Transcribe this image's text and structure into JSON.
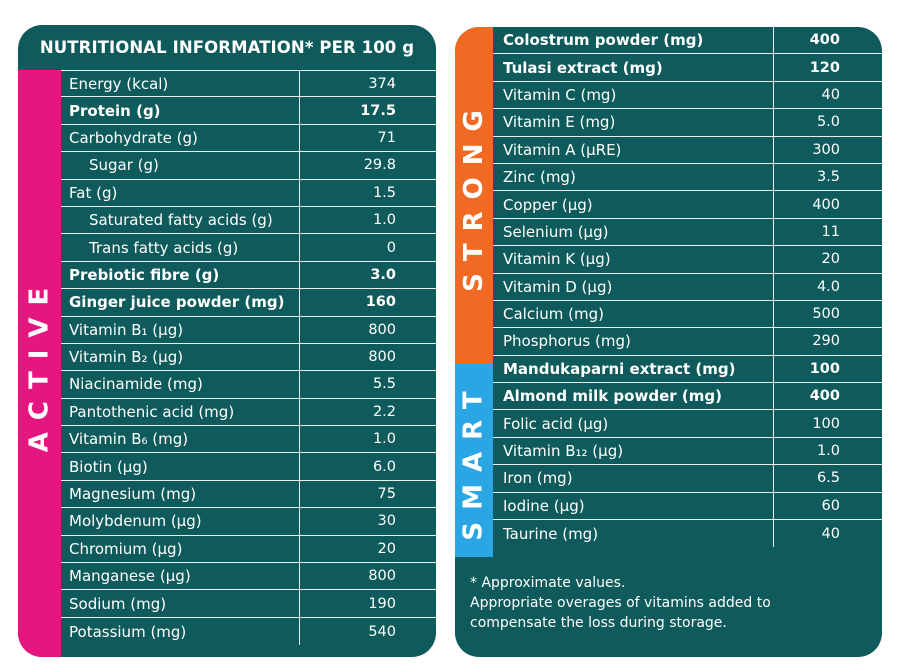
{
  "title": "NUTRITIONAL INFORMATION* PER 100 g",
  "bands": {
    "active": "ACTIVE",
    "strong": "STRONG",
    "smart": "SMART"
  },
  "left_rows": [
    {
      "name": "Energy (kcal)",
      "value": "374",
      "bold": false,
      "indent": false
    },
    {
      "name": "Protein (g)",
      "value": "17.5",
      "bold": true,
      "indent": false
    },
    {
      "name": "Carbohydrate (g)",
      "value": "71",
      "bold": false,
      "indent": false
    },
    {
      "name": "Sugar (g)",
      "value": "29.8",
      "bold": false,
      "indent": true
    },
    {
      "name": "Fat (g)",
      "value": "1.5",
      "bold": false,
      "indent": false
    },
    {
      "name": "Saturated fatty acids (g)",
      "value": "1.0",
      "bold": false,
      "indent": true
    },
    {
      "name": "Trans fatty acids (g)",
      "value": "0",
      "bold": false,
      "indent": true
    },
    {
      "name": "Prebiotic fibre (g)",
      "value": "3.0",
      "bold": true,
      "indent": false
    },
    {
      "name": "Ginger juice powder (mg)",
      "value": "160",
      "bold": true,
      "indent": false
    },
    {
      "name": "Vitamin B₁ (μg)",
      "value": "800",
      "bold": false,
      "indent": false
    },
    {
      "name": "Vitamin B₂ (μg)",
      "value": "800",
      "bold": false,
      "indent": false
    },
    {
      "name": "Niacinamide (mg)",
      "value": "5.5",
      "bold": false,
      "indent": false
    },
    {
      "name": "Pantothenic acid (mg)",
      "value": "2.2",
      "bold": false,
      "indent": false
    },
    {
      "name": "Vitamin B₆ (mg)",
      "value": "1.0",
      "bold": false,
      "indent": false
    },
    {
      "name": "Biotin (μg)",
      "value": "6.0",
      "bold": false,
      "indent": false
    },
    {
      "name": "Magnesium (mg)",
      "value": "75",
      "bold": false,
      "indent": false
    },
    {
      "name": "Molybdenum (μg)",
      "value": "30",
      "bold": false,
      "indent": false
    },
    {
      "name": "Chromium (μg)",
      "value": "20",
      "bold": false,
      "indent": false
    },
    {
      "name": "Manganese (μg)",
      "value": "800",
      "bold": false,
      "indent": false
    },
    {
      "name": "Sodium (mg)",
      "value": "190",
      "bold": false,
      "indent": false
    },
    {
      "name": "Potassium (mg)",
      "value": "540",
      "bold": false,
      "indent": false
    }
  ],
  "right_rows": [
    {
      "name": "Colostrum powder (mg)",
      "value": "400",
      "bold": true
    },
    {
      "name": "Tulasi extract (mg)",
      "value": "120",
      "bold": true
    },
    {
      "name": "Vitamin C (mg)",
      "value": "40",
      "bold": false
    },
    {
      "name": "Vitamin E (mg)",
      "value": "5.0",
      "bold": false
    },
    {
      "name": "Vitamin A (μRE)",
      "value": "300",
      "bold": false
    },
    {
      "name": "Zinc (mg)",
      "value": "3.5",
      "bold": false
    },
    {
      "name": "Copper (μg)",
      "value": "400",
      "bold": false
    },
    {
      "name": "Selenium (μg)",
      "value": "11",
      "bold": false
    },
    {
      "name": "Vitamin K (μg)",
      "value": "20",
      "bold": false
    },
    {
      "name": "Vitamin D (μg)",
      "value": "4.0",
      "bold": false
    },
    {
      "name": "Calcium (mg)",
      "value": "500",
      "bold": false
    },
    {
      "name": "Phosphorus (mg)",
      "value": "290",
      "bold": false
    },
    {
      "name": "Mandukaparni extract (mg)",
      "value": "100",
      "bold": true
    },
    {
      "name": "Almond milk powder (mg)",
      "value": "400",
      "bold": true
    },
    {
      "name": "Folic acid (μg)",
      "value": "100",
      "bold": false
    },
    {
      "name": "Vitamin B₁₂ (μg)",
      "value": "1.0",
      "bold": false
    },
    {
      "name": "Iron (mg)",
      "value": "6.5",
      "bold": false
    },
    {
      "name": "Iodine (μg)",
      "value": "60",
      "bold": false
    },
    {
      "name": "Taurine (mg)",
      "value": "40",
      "bold": false
    }
  ],
  "footnote": {
    "line1": "* Approximate values.",
    "line2": "Appropriate overages of vitamins added to",
    "line3": "compensate the loss during storage."
  },
  "colors": {
    "panel": "#0f5a5b",
    "active": "#e5177e",
    "strong": "#f06a23",
    "smart": "#2aa6e4"
  }
}
